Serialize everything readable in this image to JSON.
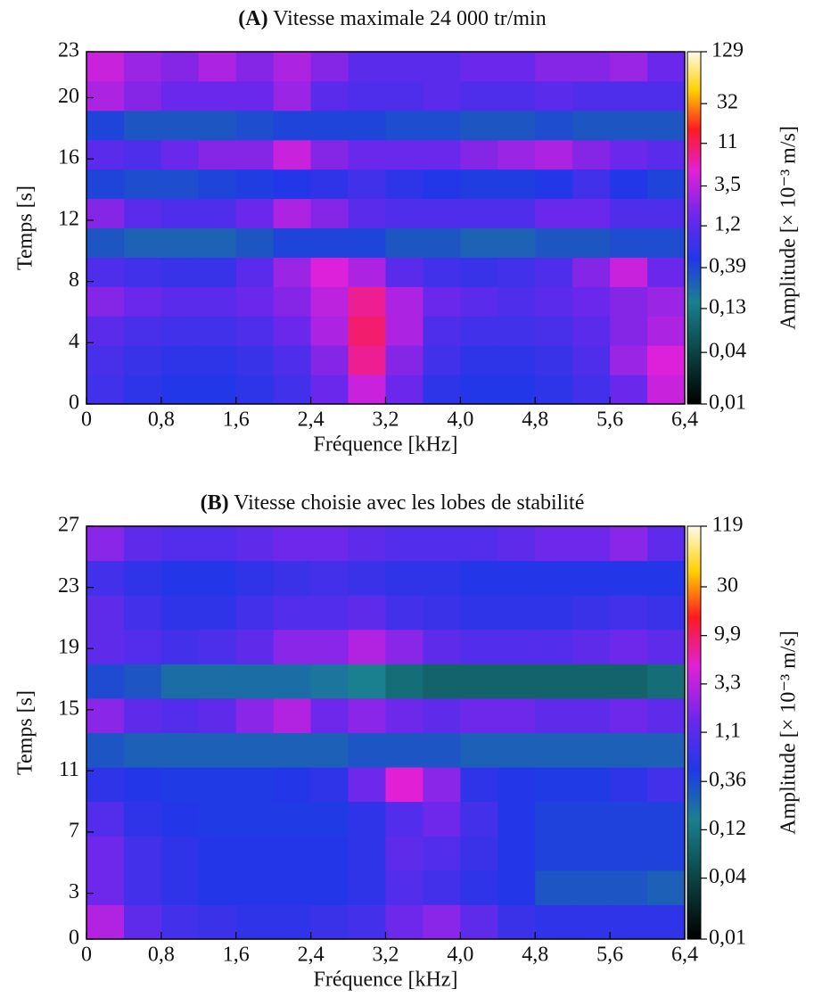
{
  "chart_data": [
    {
      "type": "heatmap",
      "panel_label": "(A)",
      "title": "Vitesse maximale 24 000 tr/min",
      "xlabel": "Fréquence [kHz]",
      "ylabel": "Temps [s]",
      "zlabel": "Amplitude [× 10⁻³ m/s]",
      "xlim": [
        0,
        6.4
      ],
      "ylim": [
        0,
        23
      ],
      "zlim": [
        0.01,
        129
      ],
      "zscale": "log",
      "xticks": [
        0,
        {
          "value": 0.8,
          "label": "0,8"
        },
        {
          "value": 1.6,
          "label": "1,6"
        },
        {
          "value": 2.4,
          "label": "2,4"
        },
        {
          "value": 3.2,
          "label": "3,2"
        },
        {
          "value": 4.0,
          "label": "4,0"
        },
        {
          "value": 4.8,
          "label": "4,8"
        },
        {
          "value": 5.6,
          "label": "5,6"
        },
        {
          "value": 6.4,
          "label": "6,4"
        }
      ],
      "yticks": [
        0,
        4,
        8,
        12,
        16,
        20,
        23
      ],
      "zticks": [
        129,
        32,
        11,
        {
          "value": 3.5,
          "label": "3,5"
        },
        {
          "value": 1.2,
          "label": "1,2"
        },
        {
          "value": 0.39,
          "label": "0,39"
        },
        {
          "value": 0.13,
          "label": "0,13"
        },
        {
          "value": 0.04,
          "label": "0,04"
        },
        {
          "value": 0.01,
          "label": "0,01"
        }
      ],
      "z": [
        [
          0.8,
          0.6,
          0.5,
          0.5,
          0.6,
          0.8,
          1.5,
          4,
          1.5,
          0.6,
          0.5,
          0.5,
          0.6,
          0.8,
          1.5,
          4
        ],
        [
          0.9,
          0.7,
          0.6,
          0.6,
          0.7,
          1,
          2,
          8,
          2,
          0.8,
          0.6,
          0.6,
          0.7,
          1,
          2.5,
          5
        ],
        [
          1.2,
          0.9,
          0.8,
          0.8,
          1,
          1.5,
          3,
          10,
          3,
          1,
          0.8,
          0.8,
          0.9,
          1.2,
          2,
          3
        ],
        [
          2,
          1.5,
          1.2,
          1.2,
          1.5,
          2,
          3.5,
          8,
          3,
          1.5,
          1.2,
          1,
          1.2,
          1.5,
          2,
          2.5
        ],
        [
          1,
          0.8,
          0.7,
          0.7,
          1.2,
          2.5,
          5,
          3,
          1.2,
          0.8,
          0.7,
          0.8,
          1,
          2,
          4,
          1.5
        ],
        [
          0.3,
          0.25,
          0.25,
          0.25,
          0.3,
          0.4,
          0.4,
          0.4,
          0.3,
          0.3,
          0.25,
          0.25,
          0.3,
          0.3,
          0.35,
          0.35
        ],
        [
          2,
          1.2,
          1,
          1,
          1.5,
          3,
          2,
          1.2,
          1,
          1,
          1,
          1,
          1.5,
          1.5,
          1,
          1
        ],
        [
          0.4,
          0.35,
          0.35,
          0.4,
          0.45,
          0.5,
          0.6,
          0.8,
          0.6,
          0.5,
          0.45,
          0.45,
          0.5,
          0.8,
          0.5,
          0.4
        ],
        [
          1.2,
          1,
          1.5,
          2,
          2,
          4,
          2,
          1.5,
          1.5,
          1.5,
          2,
          2.5,
          3,
          2,
          1.5,
          1.2
        ],
        [
          0.4,
          0.3,
          0.3,
          0.3,
          0.35,
          0.4,
          0.4,
          0.4,
          0.35,
          0.35,
          0.3,
          0.3,
          0.35,
          0.3,
          0.3,
          0.3
        ],
        [
          3,
          2,
          1.5,
          1.5,
          1.5,
          2.5,
          1.2,
          1,
          1,
          1.2,
          1,
          1,
          1.2,
          1,
          1,
          1
        ],
        [
          4,
          2.5,
          2,
          3,
          2,
          3,
          2,
          1.2,
          1.2,
          1.2,
          1.5,
          1.5,
          2,
          2,
          2.5,
          1.5
        ]
      ]
    },
    {
      "type": "heatmap",
      "panel_label": "(B)",
      "title": "Vitesse choisie avec les lobes de stabilité",
      "xlabel": "Fréquence [kHz]",
      "ylabel": "Temps [s]",
      "zlabel": "Amplitude [× 10⁻³ m/s]",
      "xlim": [
        0,
        6.4
      ],
      "ylim": [
        0,
        27
      ],
      "zlim": [
        0.01,
        119
      ],
      "zscale": "log",
      "xticks": [
        0,
        {
          "value": 0.8,
          "label": "0,8"
        },
        {
          "value": 1.6,
          "label": "1,6"
        },
        {
          "value": 2.4,
          "label": "2,4"
        },
        {
          "value": 3.2,
          "label": "3,2"
        },
        {
          "value": 4.0,
          "label": "4,0"
        },
        {
          "value": 4.8,
          "label": "4,8"
        },
        {
          "value": 5.6,
          "label": "5,6"
        },
        {
          "value": 6.4,
          "label": "6,4"
        }
      ],
      "yticks": [
        0,
        3,
        7,
        11,
        15,
        19,
        23,
        27
      ],
      "zticks": [
        119,
        30,
        {
          "value": 9.9,
          "label": "9,9"
        },
        {
          "value": 3.3,
          "label": "3,3"
        },
        {
          "value": 1.1,
          "label": "1,1"
        },
        {
          "value": 0.36,
          "label": "0,36"
        },
        {
          "value": 0.12,
          "label": "0,12"
        },
        {
          "value": 0.04,
          "label": "0,04"
        },
        {
          "value": 0.01,
          "label": "0,01"
        }
      ],
      "z": [
        [
          3,
          1.2,
          0.8,
          0.7,
          0.6,
          0.6,
          0.7,
          0.8,
          1.5,
          2,
          1.2,
          0.7,
          0.6,
          0.6,
          0.6,
          0.6
        ],
        [
          1.5,
          0.8,
          0.6,
          0.5,
          0.5,
          0.5,
          0.5,
          0.6,
          1,
          0.8,
          0.6,
          0.5,
          0.3,
          0.3,
          0.3,
          0.25
        ],
        [
          1.5,
          0.8,
          0.6,
          0.5,
          0.5,
          0.5,
          0.5,
          0.6,
          1.2,
          1,
          0.7,
          0.5,
          0.4,
          0.4,
          0.4,
          0.4
        ],
        [
          1,
          0.6,
          0.5,
          0.45,
          0.45,
          0.45,
          0.45,
          0.6,
          1,
          1.5,
          0.8,
          0.5,
          0.4,
          0.4,
          0.4,
          0.4
        ],
        [
          0.6,
          0.5,
          0.45,
          0.45,
          0.45,
          0.5,
          0.6,
          1.5,
          5,
          2,
          0.6,
          0.5,
          0.45,
          0.45,
          0.6,
          0.8
        ],
        [
          0.3,
          0.25,
          0.25,
          0.25,
          0.25,
          0.25,
          0.25,
          0.3,
          0.3,
          0.3,
          0.25,
          0.25,
          0.25,
          0.25,
          0.25,
          0.25
        ],
        [
          2,
          1.2,
          1,
          1.2,
          2,
          3,
          1.5,
          2,
          1.5,
          1.2,
          1.5,
          1.5,
          1.2,
          1.2,
          1.5,
          1.2
        ],
        [
          0.35,
          0.3,
          0.2,
          0.2,
          0.2,
          0.2,
          0.18,
          0.15,
          0.1,
          0.08,
          0.08,
          0.08,
          0.08,
          0.08,
          0.08,
          0.1
        ],
        [
          1.2,
          1,
          0.8,
          0.9,
          1.2,
          2,
          2,
          3,
          2,
          1.2,
          1,
          1,
          1,
          1.2,
          1.5,
          1.2
        ],
        [
          1.2,
          0.8,
          0.6,
          0.6,
          0.8,
          1,
          1,
          1.2,
          0.8,
          0.7,
          0.6,
          0.6,
          0.6,
          0.7,
          0.8,
          0.7
        ],
        [
          0.8,
          0.6,
          0.5,
          0.5,
          0.6,
          0.7,
          0.8,
          0.7,
          0.6,
          0.6,
          0.5,
          0.5,
          0.5,
          0.5,
          0.5,
          0.5
        ],
        [
          2,
          1.2,
          1,
          1,
          1.2,
          1.5,
          1.5,
          1.2,
          1,
          1,
          1,
          1.2,
          1.5,
          1.5,
          2,
          1.2
        ]
      ]
    }
  ]
}
